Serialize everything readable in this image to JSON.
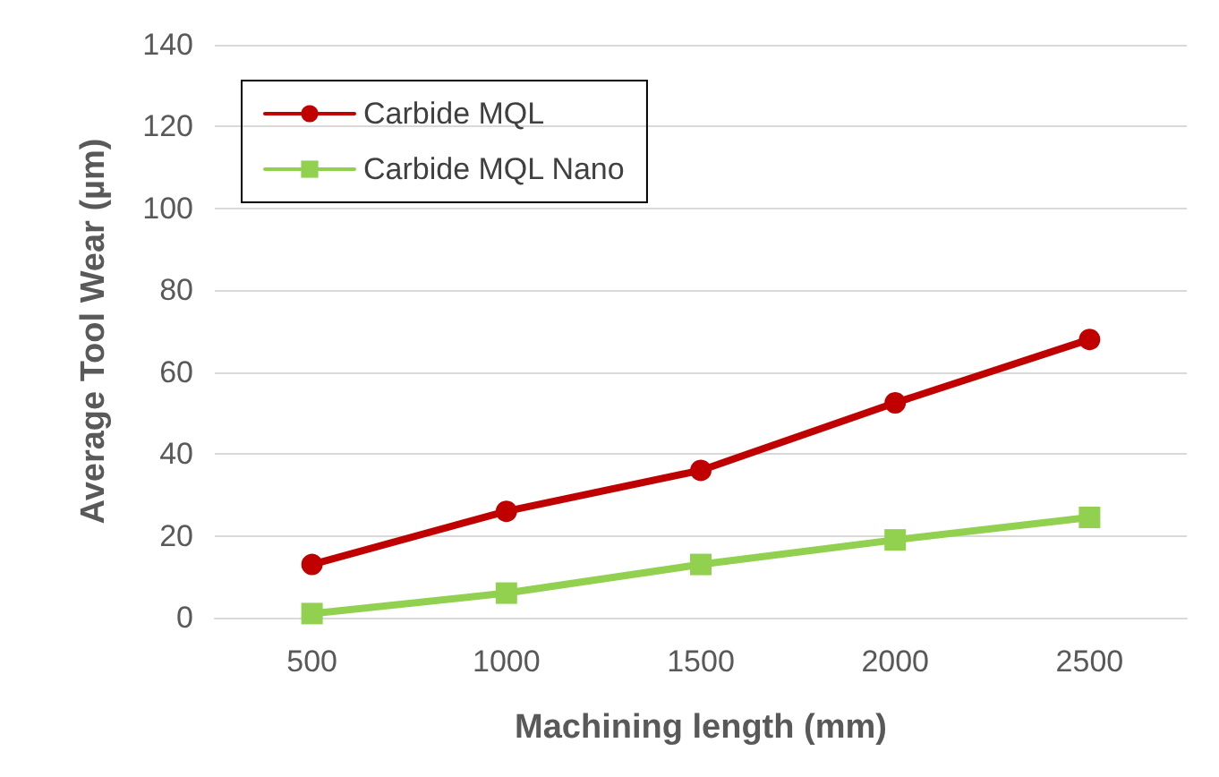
{
  "chart_data": {
    "type": "line",
    "xlabel": "Machining length (mm)",
    "ylabel": "Average Tool Wear (µm)",
    "categories": [
      "500",
      "1000",
      "1500",
      "2000",
      "2500"
    ],
    "series": [
      {
        "name": "Carbide MQL",
        "color": "#c00000",
        "values": [
          13,
          26,
          36,
          52.5,
          68
        ]
      },
      {
        "name": "Carbide MQL Nano",
        "color": "#92d050",
        "values": [
          1,
          6,
          13,
          19,
          24.5
        ]
      }
    ],
    "ylim": [
      0,
      140
    ],
    "yticks": [
      0,
      20,
      40,
      60,
      80,
      100,
      120,
      140
    ],
    "grid": "y",
    "legend": "top left",
    "marker": [
      "circle",
      "square"
    ],
    "line_style": "solid"
  }
}
